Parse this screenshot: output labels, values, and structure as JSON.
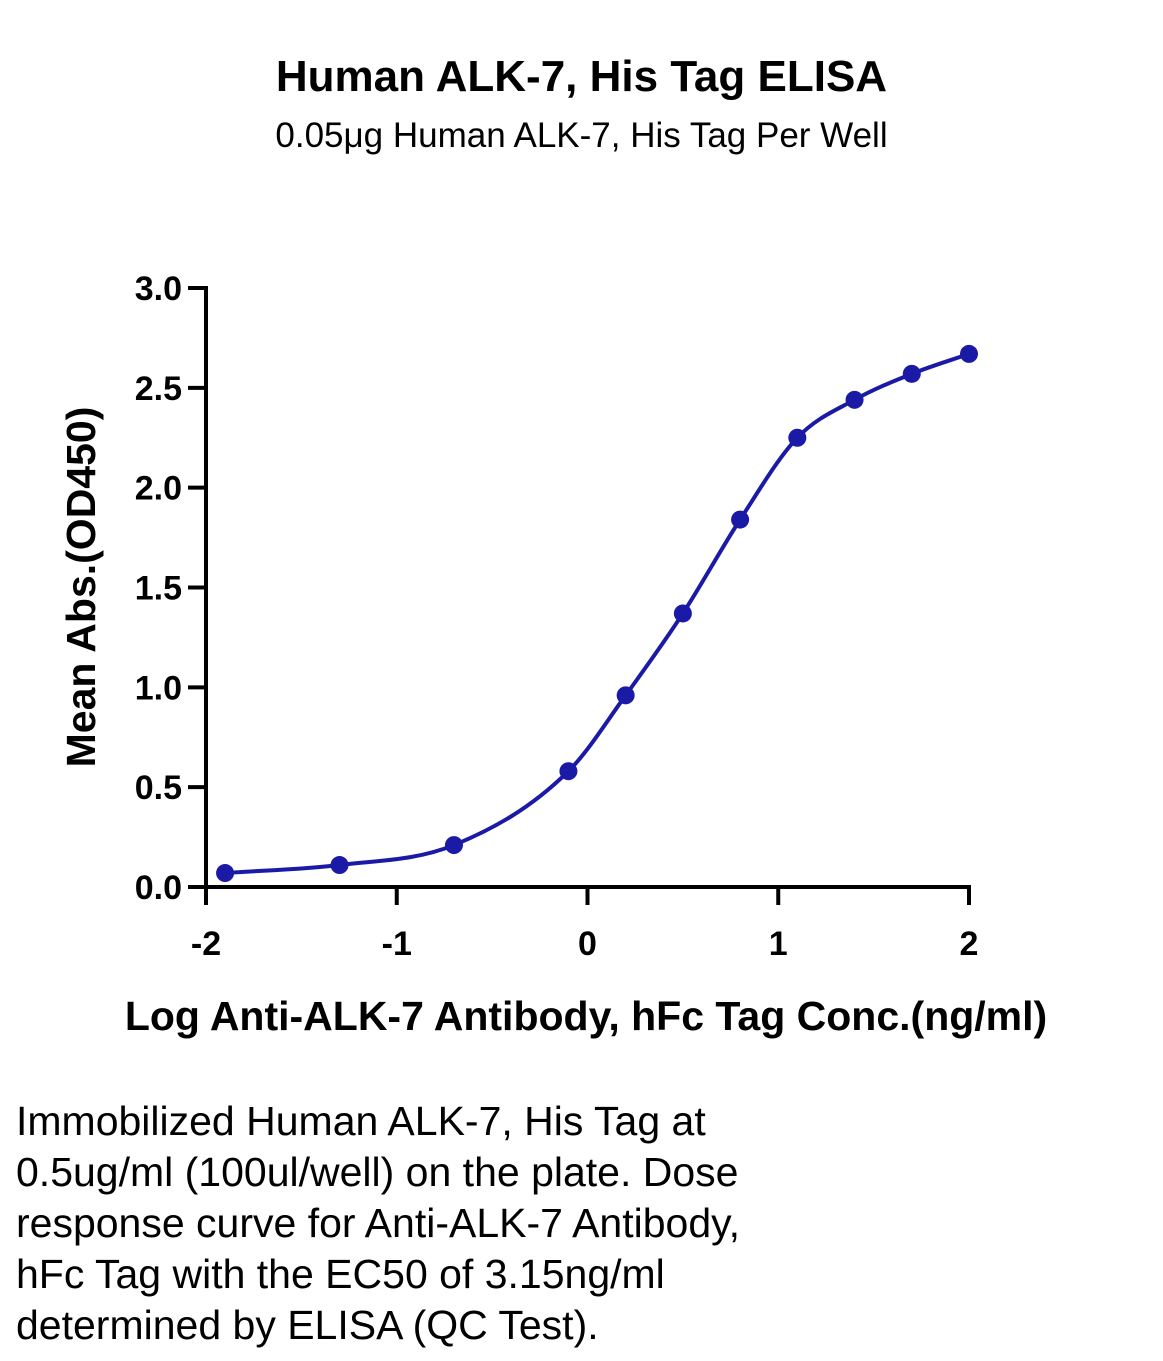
{
  "chart_data": {
    "type": "scatter",
    "title": "Human ALK-7, His Tag ELISA",
    "subtitle": "0.05μg Human ALK-7, His Tag Per Well",
    "xlabel": "Log Anti-ALK-7 Antibody, hFc Tag Conc.(ng/ml)",
    "ylabel": "Mean Abs.(OD450)",
    "xlim": [
      -2,
      2
    ],
    "ylim": [
      0,
      3.0
    ],
    "xticks": [
      "-2",
      "-1",
      "0",
      "1",
      "2"
    ],
    "yticks": [
      "0.0",
      "0.5",
      "1.0",
      "1.5",
      "2.0",
      "2.5",
      "3.0"
    ],
    "series": [
      {
        "x": [
          -1.9,
          -1.3,
          -0.7,
          -0.1,
          0.2,
          0.5,
          0.8,
          1.1,
          1.4,
          1.7,
          2.0
        ],
        "y": [
          0.07,
          0.11,
          0.21,
          0.58,
          0.96,
          1.37,
          1.84,
          2.25,
          2.44,
          2.57,
          2.67
        ],
        "fit": "sigmoidal",
        "color": "#1a1aa6"
      }
    ],
    "grid": false,
    "legend": "none"
  },
  "caption": {
    "lines": [
      "Immobilized Human ALK-7, His Tag at",
      "0.5ug/ml (100ul/well) on the plate. Dose",
      "response curve for Anti-ALK-7 Antibody,",
      "hFc Tag with the EC50 of 3.15ng/ml",
      "determined by ELISA (QC Test)."
    ]
  }
}
